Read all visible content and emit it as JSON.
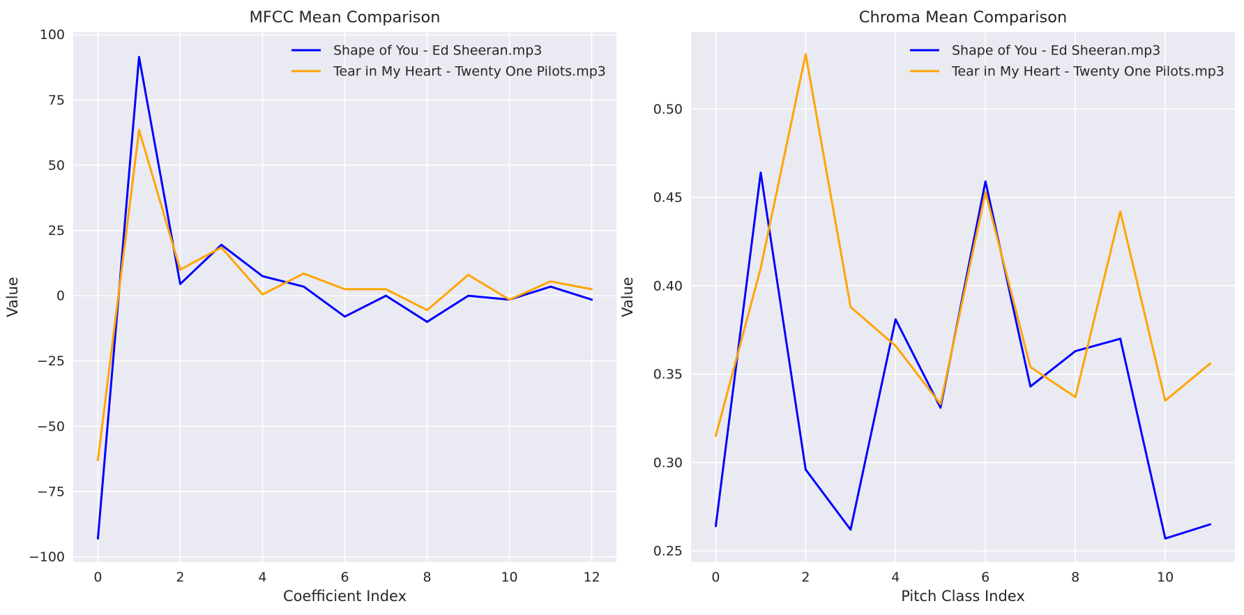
{
  "chart_data": [
    {
      "type": "line",
      "title": "MFCC Mean Comparison",
      "xlabel": "Coefficient Index",
      "ylabel": "Value",
      "x": [
        0,
        1,
        2,
        3,
        4,
        5,
        6,
        7,
        8,
        9,
        10,
        11,
        12
      ],
      "xlim": [
        -0.6,
        12.6
      ],
      "ylim": [
        -102,
        101
      ],
      "xticks": [
        0,
        2,
        4,
        6,
        8,
        10,
        12
      ],
      "yticks": [
        -100,
        -75,
        -50,
        -25,
        0,
        25,
        50,
        75,
        100
      ],
      "ytick_labels": [
        "−100",
        "−75",
        "−50",
        "−25",
        "0",
        "25",
        "50",
        "75",
        "100"
      ],
      "grid": true,
      "legend_position": "upper right",
      "series": [
        {
          "name": "Shape of You - Ed Sheeran.mp3",
          "color": "#0000ff",
          "values": [
            -93,
            91.5,
            4.5,
            19.5,
            7.5,
            3.5,
            -8,
            0,
            -10,
            0,
            -1.5,
            3.5,
            -1.5
          ]
        },
        {
          "name": "Tear in My Heart - Twenty One Pilots.mp3",
          "color": "#ffa500",
          "values": [
            -63,
            63.5,
            10,
            18.5,
            0.5,
            8.5,
            2.5,
            2.5,
            -5.5,
            8,
            -1.5,
            5.5,
            2.5
          ]
        }
      ]
    },
    {
      "type": "line",
      "title": "Chroma Mean Comparison",
      "xlabel": "Pitch Class Index",
      "ylabel": "Value",
      "x": [
        0,
        1,
        2,
        3,
        4,
        5,
        6,
        7,
        8,
        9,
        10,
        11
      ],
      "xlim": [
        -0.55,
        11.55
      ],
      "ylim": [
        0.2437,
        0.5435
      ],
      "xticks": [
        0,
        2,
        4,
        6,
        8,
        10
      ],
      "yticks": [
        0.25,
        0.3,
        0.35,
        0.4,
        0.45,
        0.5
      ],
      "ytick_labels": [
        "0.25",
        "0.30",
        "0.35",
        "0.40",
        "0.45",
        "0.50"
      ],
      "grid": true,
      "legend_position": "upper right",
      "series": [
        {
          "name": "Shape of You - Ed Sheeran.mp3",
          "color": "#0000ff",
          "values": [
            0.264,
            0.464,
            0.296,
            0.262,
            0.381,
            0.331,
            0.459,
            0.343,
            0.363,
            0.37,
            0.257,
            0.265
          ]
        },
        {
          "name": "Tear in My Heart - Twenty One Pilots.mp3",
          "color": "#ffa500",
          "values": [
            0.315,
            0.41,
            0.531,
            0.388,
            0.366,
            0.333,
            0.453,
            0.354,
            0.337,
            0.442,
            0.335,
            0.356
          ]
        }
      ]
    }
  ]
}
